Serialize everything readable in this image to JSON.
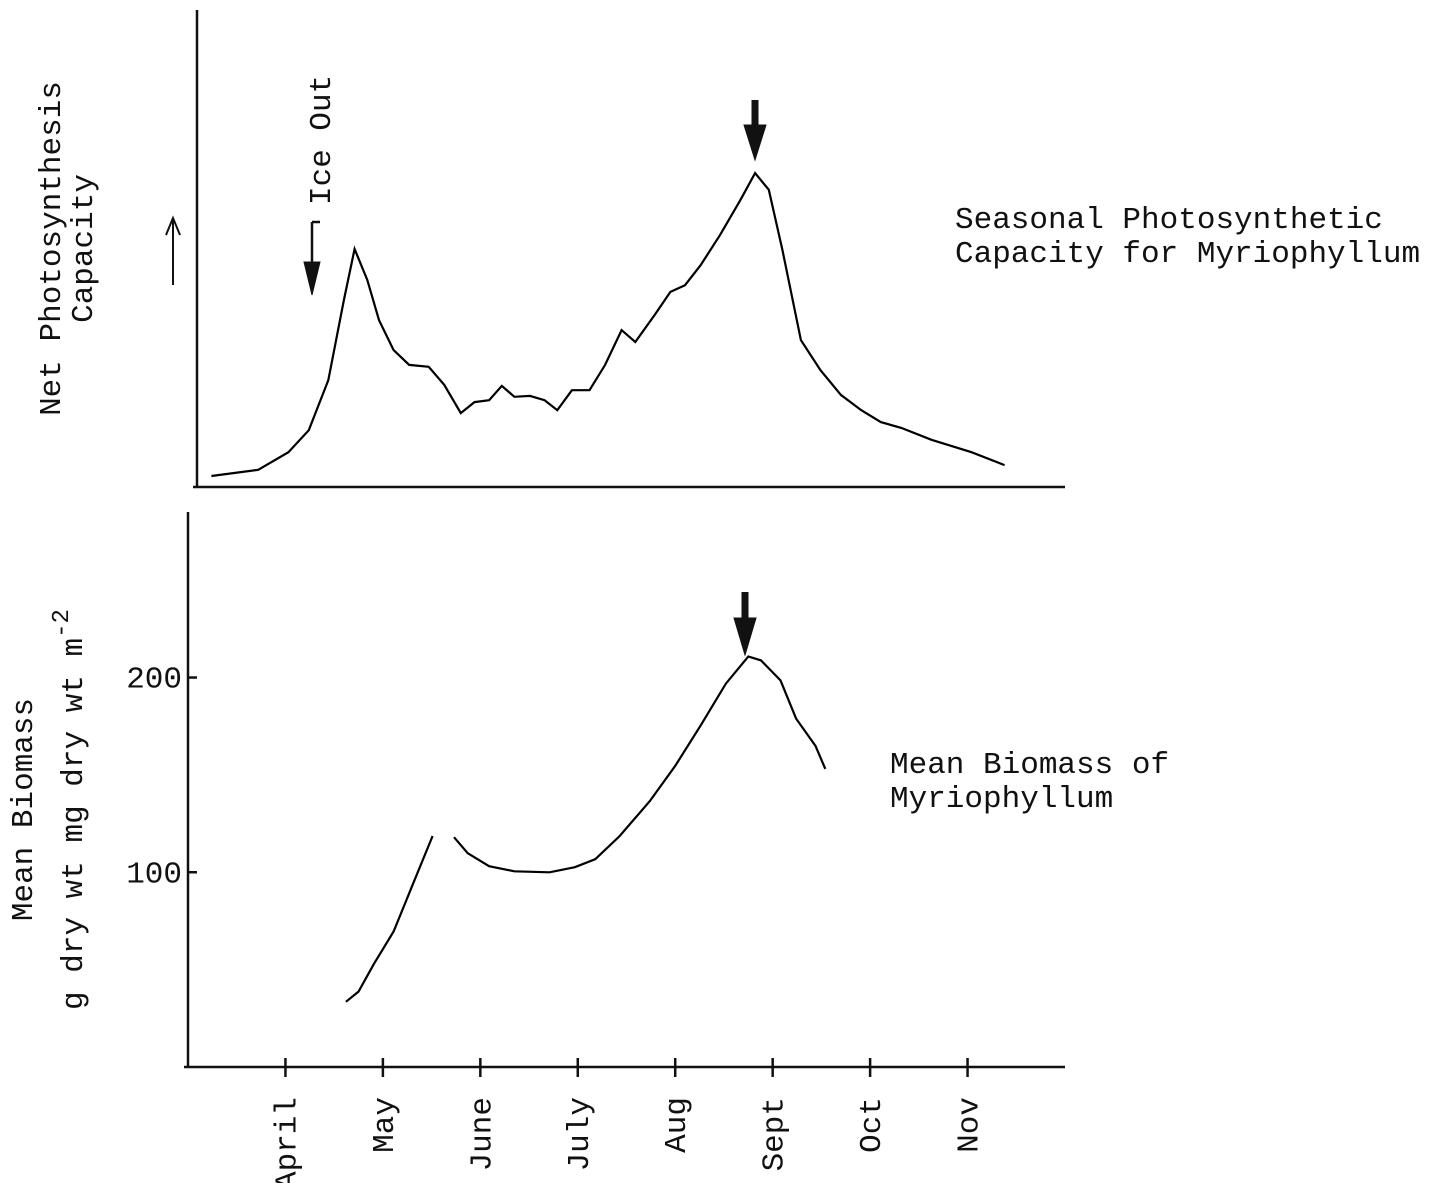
{
  "chart_data": [
    {
      "type": "line",
      "y_label_lines": [
        "Net Photosynthesis",
        "Capacity"
      ],
      "annotation": "Ice Out",
      "title_lines": [
        "Seasonal Photosynthetic",
        "Capacity for Myriophyllum"
      ],
      "xlim": [
        3,
        12
      ],
      "ylim": [
        0,
        100
      ],
      "color": "#000000",
      "x": [
        3.24,
        3.72,
        4.03,
        4.24,
        4.44,
        4.6,
        4.71,
        4.84,
        4.96,
        5.11,
        5.27,
        5.47,
        5.63,
        5.8,
        5.94,
        6.09,
        6.22,
        6.35,
        6.51,
        6.66,
        6.79,
        6.94,
        7.12,
        7.28,
        7.45,
        7.59,
        7.79,
        7.95,
        8.1,
        8.26,
        8.46,
        8.67,
        8.82,
        8.96,
        9.1,
        9.29,
        9.49,
        9.7,
        9.91,
        10.11,
        10.32,
        10.63,
        11.04,
        11.38
      ],
      "values": [
        2.3,
        3.6,
        7.3,
        11.9,
        22.4,
        39.2,
        49.9,
        43.4,
        35.0,
        28.7,
        25.6,
        25.2,
        21.4,
        15.5,
        17.8,
        18.2,
        21.2,
        18.9,
        19.1,
        18.2,
        16.1,
        20.3,
        20.3,
        25.6,
        32.9,
        30.4,
        36.1,
        40.9,
        42.3,
        46.5,
        52.8,
        60.2,
        65.8,
        62.3,
        49.7,
        30.8,
        24.5,
        19.3,
        16.1,
        13.6,
        12.4,
        9.9,
        7.3,
        4.6
      ]
    },
    {
      "type": "line",
      "y_label_lines": [
        "Mean Biomass",
        "g dry wt m"
      ],
      "y_label_superscript": "-2",
      "title_lines": [
        "Mean Biomass of",
        "Myriophyllum"
      ],
      "xlim": [
        3,
        12
      ],
      "ylim": [
        0,
        285
      ],
      "yticks": [
        100,
        200
      ],
      "color": "#000000",
      "xticks": [
        {
          "value": 4,
          "label": "April"
        },
        {
          "value": 5,
          "label": "May"
        },
        {
          "value": 6,
          "label": "June"
        },
        {
          "value": 7,
          "label": "July"
        },
        {
          "value": 8,
          "label": "Aug"
        },
        {
          "value": 9,
          "label": "Sept"
        },
        {
          "value": 10,
          "label": "Oct"
        },
        {
          "value": 11,
          "label": "Nov"
        }
      ],
      "x": [
        4.62,
        4.75,
        4.91,
        5.11,
        5.32,
        5.51,
        null,
        5.73,
        5.87,
        6.09,
        6.35,
        6.71,
        6.97,
        7.18,
        7.43,
        7.74,
        8.0,
        8.26,
        8.52,
        8.75,
        8.88,
        9.08,
        9.24,
        9.44,
        9.54
      ],
      "values": [
        33.5,
        38.7,
        53.1,
        69.6,
        95.4,
        118.6,
        null,
        118.0,
        109.8,
        103.1,
        100.5,
        100.0,
        102.6,
        106.7,
        118.6,
        136.6,
        154.6,
        175.3,
        196.9,
        210.8,
        208.8,
        198.5,
        178.9,
        164.9,
        153.1
      ]
    }
  ]
}
